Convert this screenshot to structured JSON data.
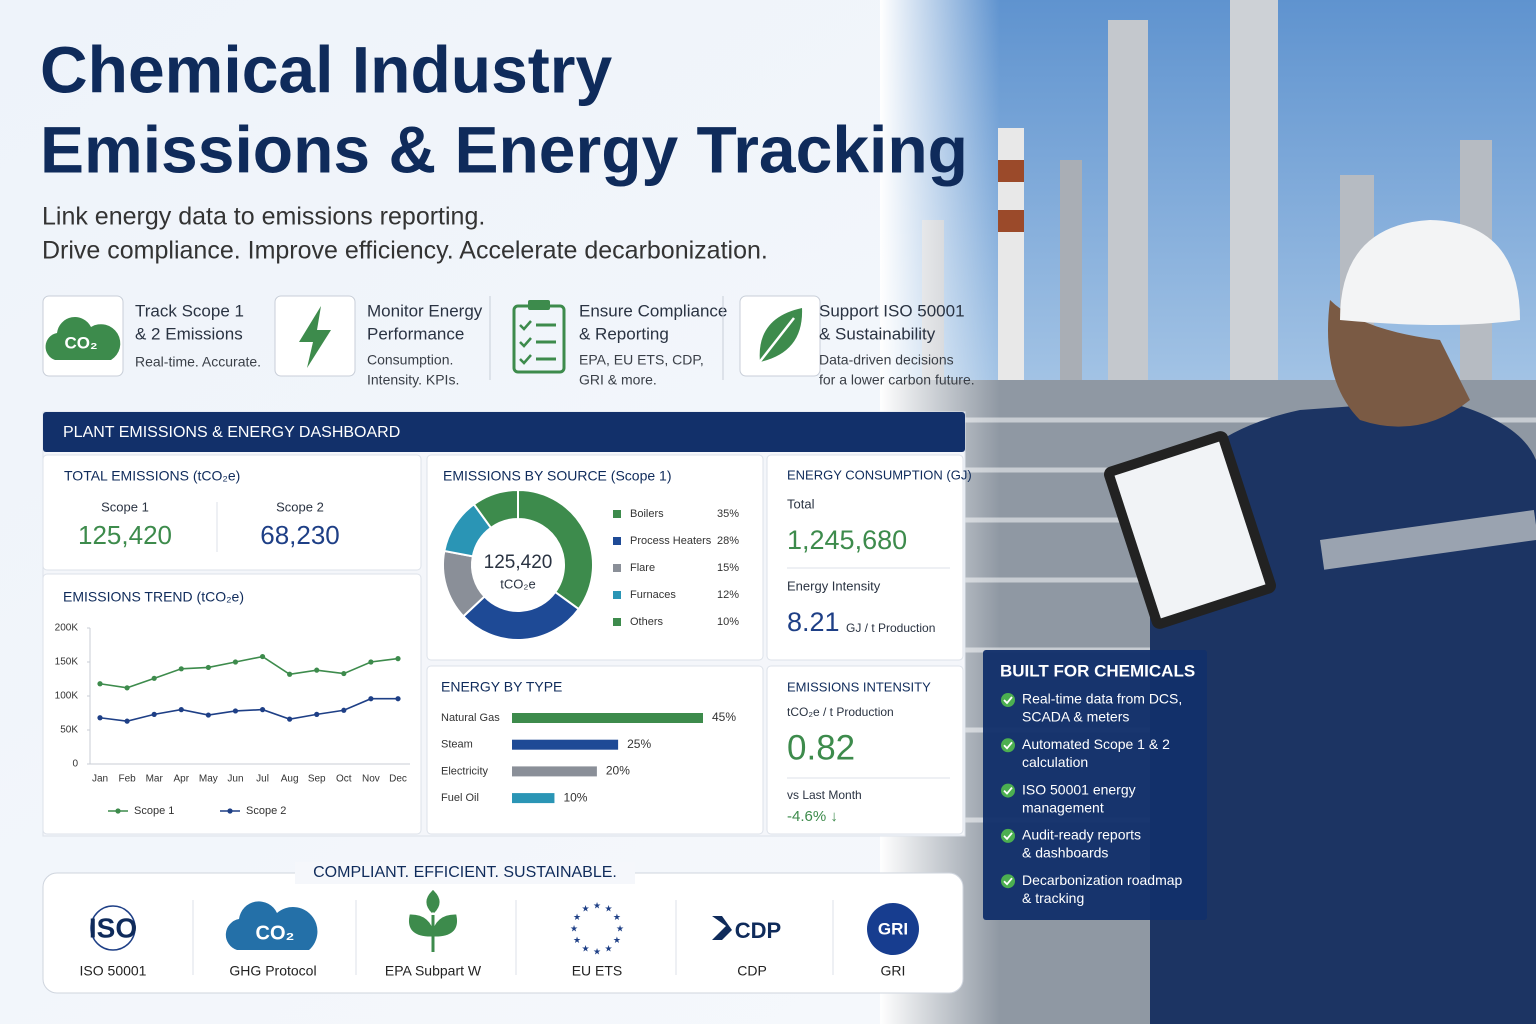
{
  "header": {
    "title_lines": [
      "Chemical Industry",
      "Emissions & Energy Tracking"
    ],
    "subtitle_lines": [
      "Link energy data to emissions reporting.",
      "Drive compliance. Improve efficiency. Accelerate decarbonization."
    ]
  },
  "features": [
    {
      "icon_label": "CO₂",
      "title": [
        "Track Scope 1",
        "& 2 Emissions"
      ],
      "desc": [
        "Real-time. Accurate."
      ]
    },
    {
      "title": [
        "Monitor Energy",
        "Performance"
      ],
      "desc": [
        "Consumption.",
        "Intensity. KPIs."
      ]
    },
    {
      "title": [
        "Ensure Compliance",
        "& Reporting"
      ],
      "desc": [
        "EPA, EU ETS, CDP,",
        "GRI & more."
      ]
    },
    {
      "title": [
        "Support ISO 50001",
        "& Sustainability"
      ],
      "desc": [
        "Data-driven decisions",
        "for a lower carbon future."
      ]
    }
  ],
  "dashboard": {
    "title": "PLANT EMISSIONS & ENERGY DASHBOARD",
    "total_emissions": {
      "title": "TOTAL EMISSIONS (tCO₂e)",
      "items": [
        {
          "label": "Scope 1",
          "value": "125,420"
        },
        {
          "label": "Scope 2",
          "value": "68,230"
        }
      ]
    },
    "trend": {
      "type": "line",
      "title": "EMISSIONS TREND (tCO₂e)",
      "categories": [
        "Jan",
        "Feb",
        "Mar",
        "Apr",
        "May",
        "Jun",
        "Jul",
        "Aug",
        "Sep",
        "Oct",
        "Nov",
        "Dec"
      ],
      "series": [
        {
          "name": "Scope 1",
          "color": "#3d8b4c",
          "values": [
            118000,
            112000,
            126000,
            140000,
            142000,
            150000,
            158000,
            132000,
            138000,
            133000,
            150000,
            155000
          ]
        },
        {
          "name": "Scope 2",
          "color": "#1e3f86",
          "values": [
            68000,
            63000,
            73000,
            80000,
            72000,
            78000,
            80000,
            66000,
            73000,
            79000,
            96000,
            96000
          ]
        }
      ],
      "ylim": [
        0,
        200000
      ],
      "yticks": [
        0,
        {
          "value": 50000,
          "label": "50K"
        },
        {
          "value": 100000,
          "label": "100K"
        },
        {
          "value": 150000,
          "label": "150K"
        },
        {
          "value": 200000,
          "label": "200K"
        }
      ],
      "grid": false
    },
    "by_source": {
      "type": "pie",
      "title": "EMISSIONS BY SOURCE (Scope 1)",
      "center_value": "125,420",
      "center_unit": "tCO₂e",
      "categories": [
        "Boilers",
        "Process Heaters",
        "Flare",
        "Furnaces",
        "Others"
      ],
      "values": [
        35,
        28,
        15,
        12,
        10
      ],
      "value_labels": [
        "35%",
        "28%",
        "15%",
        "12%",
        "10%"
      ],
      "colors": [
        "#3d8b4c",
        "#1e4a96",
        "#8a8f98",
        "#2a95b5",
        "#3d8b4c"
      ]
    },
    "energy_consumption": {
      "title": "ENERGY CONSUMPTION (GJ)",
      "total_label": "Total",
      "total": "1,245,680",
      "intensity_label": "Energy Intensity",
      "intensity": "8.21",
      "intensity_unit": "GJ / t Production"
    },
    "energy_by_type": {
      "type": "bar",
      "title": "ENERGY BY TYPE",
      "categories": [
        "Natural Gas",
        "Steam",
        "Electricity",
        "Fuel Oil"
      ],
      "values": [
        45,
        25,
        20,
        10
      ],
      "value_labels": [
        "45%",
        "25%",
        "20%",
        "10%"
      ],
      "colors": [
        "#3d8b4c",
        "#1e4a96",
        "#8a8f98",
        "#2a95b5"
      ]
    },
    "emissions_intensity": {
      "title": "EMISSIONS INTENSITY",
      "unit": "tCO₂e / t Production",
      "value": "0.82",
      "compare_label": "vs Last Month",
      "change": "-4.6% ↓"
    }
  },
  "compliance": {
    "title": "COMPLIANT. EFFICIENT. SUSTAINABLE.",
    "logos": {
      "iso": "ISO",
      "ghg": "CO₂",
      "cdp": "CDP",
      "gri": "GRI"
    },
    "items": [
      "ISO 50001",
      "GHG Protocol",
      "EPA Subpart W",
      "EU ETS",
      "CDP",
      "GRI"
    ]
  },
  "built_for": {
    "title": "BUILT FOR CHEMICALS",
    "items": [
      [
        "Real-time data from DCS,",
        "SCADA & meters"
      ],
      [
        "Automated Scope 1 & 2",
        "calculation"
      ],
      [
        "ISO 50001 energy",
        "management"
      ],
      [
        "Audit-ready reports",
        "& dashboards"
      ],
      [
        "Decarbonization roadmap",
        "& tracking"
      ]
    ]
  }
}
